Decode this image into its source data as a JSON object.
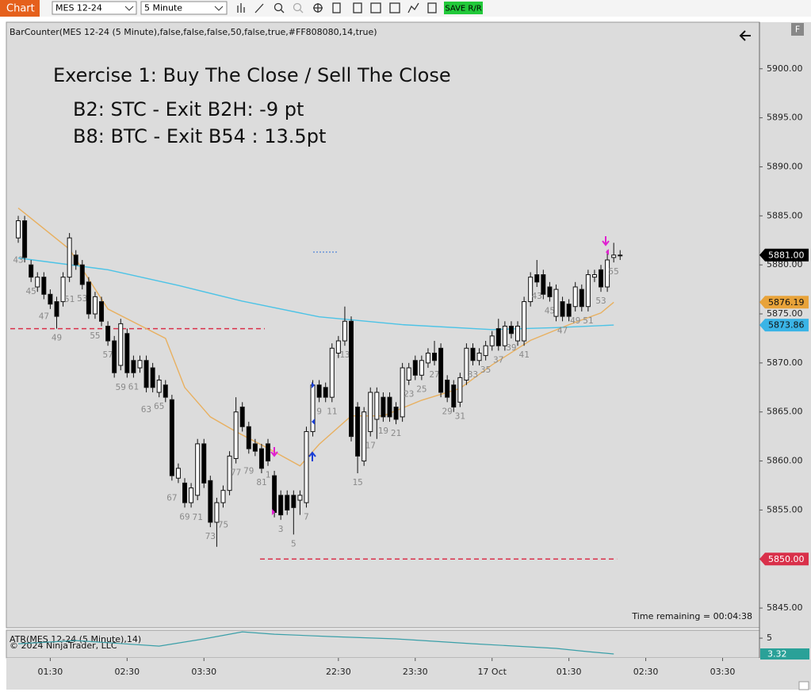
{
  "toolbar": {
    "tab": "Chart",
    "instrument": "MES 12-24",
    "interval": "5 Minute",
    "save_button": "SAVE R/R"
  },
  "chart_data": {
    "type": "candlestick",
    "indicator_label": "BarCounter(MES 12-24 (5 Minute),false,false,false,50,false,true,#FF808080,14,true)",
    "annotations": [
      "Exercise 1: Buy The Close / Sell The Close",
      "B2: STC - Exit B2H: -9 pt",
      "B8: BTC - Exit B54 : 13.5pt"
    ],
    "time_remaining": "Time remaining = 00:04:38",
    "open": [
      5882.75,
      5884.5,
      5880,
      5877.75,
      5878.75,
      5877,
      5876.25,
      5876.25,
      5878.75,
      5881,
      5880,
      5878.25,
      5875,
      5876.25,
      5873.75,
      5872.25,
      5869.75,
      5873,
      5870.25,
      5869.5,
      5870.25,
      5869.5,
      5867,
      5867.75,
      5866.25,
      5858.25,
      5857.75,
      5855.75,
      5856.5,
      5861.75,
      5858,
      5853.75,
      5855.75,
      5857,
      5860.25,
      5865.5,
      5863.5,
      5861.75,
      5861.25,
      5861.75,
      5858.5,
      5856.5,
      5856.5,
      5856.5,
      5856,
      5855.75,
      5863,
      5867.75,
      5867.5,
      5866.5,
      5871,
      5872.25,
      5874.25,
      5865.5,
      5860,
      5863,
      5864.25,
      5866.5,
      5866.5,
      5865.5,
      5864.5,
      5868.25,
      5870.25,
      5868.75,
      5870,
      5871,
      5871.5,
      5868.25,
      5867.75,
      5866,
      5868.25,
      5871.5,
      5870.25,
      5870.75,
      5871.75,
      5873.5,
      5871.75,
      5873.75,
      5872.25,
      5872.25,
      5876.25,
      5879,
      5879,
      5877.75,
      5874.75,
      5876.25,
      5876,
      5875.75,
      5877.5,
      5875.75,
      5878.75,
      5879.5,
      5877.75,
      5880.75,
      5881
    ],
    "high": [
      5885,
      5885,
      5880.5,
      5879.25,
      5879.25,
      5877.5,
      5876.75,
      5879.25,
      5883.25,
      5881.5,
      5880.5,
      5878.75,
      5877.25,
      5876.75,
      5874.25,
      5872.75,
      5874.5,
      5873.5,
      5870.75,
      5870.75,
      5870.75,
      5870,
      5868.75,
      5868.25,
      5866.75,
      5859.75,
      5858.25,
      5857.75,
      5862.25,
      5862.25,
      5858.5,
      5856.25,
      5857.5,
      5861,
      5866.5,
      5866,
      5864,
      5862.25,
      5861.75,
      5862.25,
      5859,
      5857,
      5857,
      5857,
      5857,
      5863.5,
      5868.25,
      5868.25,
      5868,
      5872,
      5872.75,
      5875.75,
      5874.75,
      5866,
      5865.5,
      5867.5,
      5867.5,
      5867,
      5867,
      5866,
      5870,
      5870,
      5870.75,
      5870.75,
      5871.5,
      5872.25,
      5872,
      5868.75,
      5868.25,
      5869,
      5872,
      5872,
      5871.5,
      5872.25,
      5873.25,
      5874.5,
      5874.25,
      5874.25,
      5874.25,
      5876.75,
      5879.25,
      5880.5,
      5879.5,
      5878.25,
      5878,
      5876.75,
      5876.5,
      5878.25,
      5878,
      5879.5,
      5879.5,
      5880,
      5881.5,
      5882.25,
      5881.5
    ],
    "low": [
      5882.25,
      5880.25,
      5878.25,
      5877.25,
      5876.5,
      5875.5,
      5873.5,
      5875.75,
      5878.25,
      5879.5,
      5877.5,
      5874.5,
      5874.5,
      5873.75,
      5871.75,
      5868.5,
      5869.25,
      5868.5,
      5868.5,
      5869,
      5867,
      5867,
      5866.5,
      5866,
      5858,
      5857.75,
      5855.25,
      5855.25,
      5856,
      5857.25,
      5853.25,
      5851.25,
      5855.25,
      5856.5,
      5859.75,
      5863,
      5860.75,
      5860.5,
      5858.75,
      5859.5,
      5854.25,
      5854,
      5854.5,
      5852.5,
      5854.5,
      5855.25,
      5862.5,
      5866,
      5866,
      5866,
      5870.5,
      5871.75,
      5862,
      5858.75,
      5859.5,
      5862.5,
      5862.25,
      5864,
      5864,
      5863.75,
      5864,
      5867.75,
      5868.25,
      5868.25,
      5869.5,
      5869.75,
      5866.5,
      5866,
      5865,
      5865.5,
      5867.75,
      5869.75,
      5869.75,
      5870.25,
      5871.25,
      5871.25,
      5871.25,
      5872.5,
      5871.75,
      5871.75,
      5875.75,
      5877.75,
      5876.5,
      5876.25,
      5874.25,
      5874.25,
      5874.25,
      5875.25,
      5875.25,
      5875.25,
      5878.25,
      5877.25,
      5877.25,
      5880.25,
      5880.5
    ],
    "close": [
      5884.5,
      5880.75,
      5878.75,
      5878.75,
      5877,
      5876,
      5874.75,
      5878.75,
      5882.75,
      5880,
      5878,
      5875,
      5876.75,
      5874.25,
      5872.25,
      5869,
      5874,
      5869,
      5869,
      5870.25,
      5867.5,
      5867.5,
      5868.25,
      5866.5,
      5858.5,
      5859.25,
      5855.75,
      5857.25,
      5861.75,
      5857.75,
      5853.75,
      5855.75,
      5857,
      5860.5,
      5865,
      5863.5,
      5861.25,
      5861,
      5859.25,
      5860,
      5854.75,
      5854.5,
      5855,
      5855.25,
      5856.5,
      5863,
      5867.75,
      5866.5,
      5866.5,
      5871.5,
      5872.25,
      5874.25,
      5862.5,
      5860.5,
      5865,
      5867,
      5867,
      5864.5,
      5864.5,
      5864.25,
      5869.5,
      5869.5,
      5868.75,
      5870.25,
      5871,
      5870.25,
      5867,
      5866.5,
      5865.5,
      5868.5,
      5871.5,
      5870.25,
      5871,
      5871.75,
      5872.75,
      5871.75,
      5873.75,
      5873,
      5873.75,
      5876.25,
      5878.75,
      5878.25,
      5877,
      5876.75,
      5877.5,
      5874.75,
      5874.75,
      5877.75,
      5875.75,
      5879,
      5879,
      5877.75,
      5880.5,
      5881,
      5881
    ],
    "bar_numbers": [
      43,
      null,
      45,
      null,
      47,
      null,
      49,
      null,
      51,
      null,
      53,
      null,
      55,
      null,
      57,
      null,
      59,
      null,
      61,
      null,
      63,
      null,
      65,
      null,
      67,
      null,
      69,
      null,
      71,
      null,
      73,
      null,
      75,
      null,
      77,
      null,
      79,
      null,
      81,
      1,
      null,
      3,
      null,
      5,
      null,
      7,
      null,
      9,
      null,
      11,
      null,
      13,
      null,
      15,
      null,
      17,
      null,
      19,
      null,
      21,
      null,
      23,
      null,
      25,
      null,
      27,
      null,
      29,
      null,
      31,
      null,
      33,
      null,
      35,
      null,
      37,
      null,
      39,
      null,
      41,
      null,
      43,
      null,
      45,
      null,
      47,
      null,
      49,
      null,
      51,
      null,
      53,
      null,
      55,
      null
    ],
    "overlays": [
      {
        "color": "#e8b060",
        "x": [
          0,
          8,
          14,
          23,
          26,
          30,
          34,
          39,
          44,
          47,
          52,
          57,
          63,
          69,
          74,
          80,
          86,
          91,
          93
        ],
        "values": [
          5885.8,
          5881.6,
          5875.5,
          5872.5,
          5867.5,
          5864.5,
          5863,
          5861.3,
          5859.5,
          5861.7,
          5864.6,
          5864.6,
          5866.2,
          5867.4,
          5869.8,
          5872.3,
          5873.9,
          5875.1,
          5876.19
        ]
      },
      {
        "color": "#4cc3e6",
        "x": [
          0,
          14,
          25,
          35,
          47,
          60,
          74,
          84,
          93
        ],
        "values": [
          5880.7,
          5879.5,
          5877.9,
          5876.3,
          5874.7,
          5873.9,
          5873.4,
          5873.6,
          5873.86
        ]
      }
    ],
    "levels": [
      {
        "value": 5873.5,
        "color": "#d9304a"
      },
      {
        "value": 5850,
        "color": "#d9304a"
      }
    ],
    "price_markers": [
      {
        "value": 5881,
        "label": "5881.00",
        "color": "#000000"
      },
      {
        "value": 5876.19,
        "label": "5876.19",
        "color": "#e8a33a"
      },
      {
        "value": 5873.86,
        "label": "5873.86",
        "color": "#3ab4e6"
      },
      {
        "value": 5850,
        "label": "5850.00",
        "color": "#d9304a"
      }
    ],
    "ylim": [
      5843.15,
      5904.75
    ],
    "yticks": [
      {
        "value": 5900,
        "label": "5900.00"
      },
      {
        "value": 5895,
        "label": "5895.00"
      },
      {
        "value": 5890,
        "label": "5890.00"
      },
      {
        "value": 5885,
        "label": "5885.00"
      },
      {
        "value": 5880,
        "label": "5880.00"
      },
      {
        "value": 5875,
        "label": "5875.00"
      },
      {
        "value": 5870,
        "label": "5870.00"
      },
      {
        "value": 5865,
        "label": "5865.00"
      },
      {
        "value": 5860,
        "label": "5860.00"
      },
      {
        "value": 5855,
        "label": "5855.00"
      },
      {
        "value": 5850,
        "label": "5850.00"
      },
      {
        "value": 5845,
        "label": "5845.00"
      }
    ],
    "xlim": [
      -1.86,
      115.76
    ],
    "xticks": [
      {
        "value": 5,
        "label": "01:30"
      },
      {
        "value": 17,
        "label": "02:30"
      },
      {
        "value": 29,
        "label": "03:30"
      },
      {
        "value": 50,
        "label": "22:30"
      },
      {
        "value": 62,
        "label": "23:30"
      },
      {
        "value": 74,
        "label": "17 Oct"
      },
      {
        "value": 86,
        "label": "01:30"
      },
      {
        "value": 98,
        "label": "02:30"
      },
      {
        "value": 110,
        "label": "03:30"
      }
    ],
    "atr": {
      "title": "ATR(MES 12-24 (5 Minute),14)",
      "copyright": "© 2024 NinjaTrader, LLC",
      "color": "#3a9fa8",
      "x": [
        0,
        9,
        22,
        29,
        35,
        40,
        49,
        59,
        71,
        84,
        89,
        93
      ],
      "values": [
        4.41,
        4.75,
        4.16,
        4.92,
        5.67,
        5.42,
        5.17,
        4.92,
        4.41,
        3.91,
        3.57,
        3.32
      ],
      "ylim": [
        2.9,
        5.85
      ],
      "yticks": [
        5
      ]
    }
  }
}
